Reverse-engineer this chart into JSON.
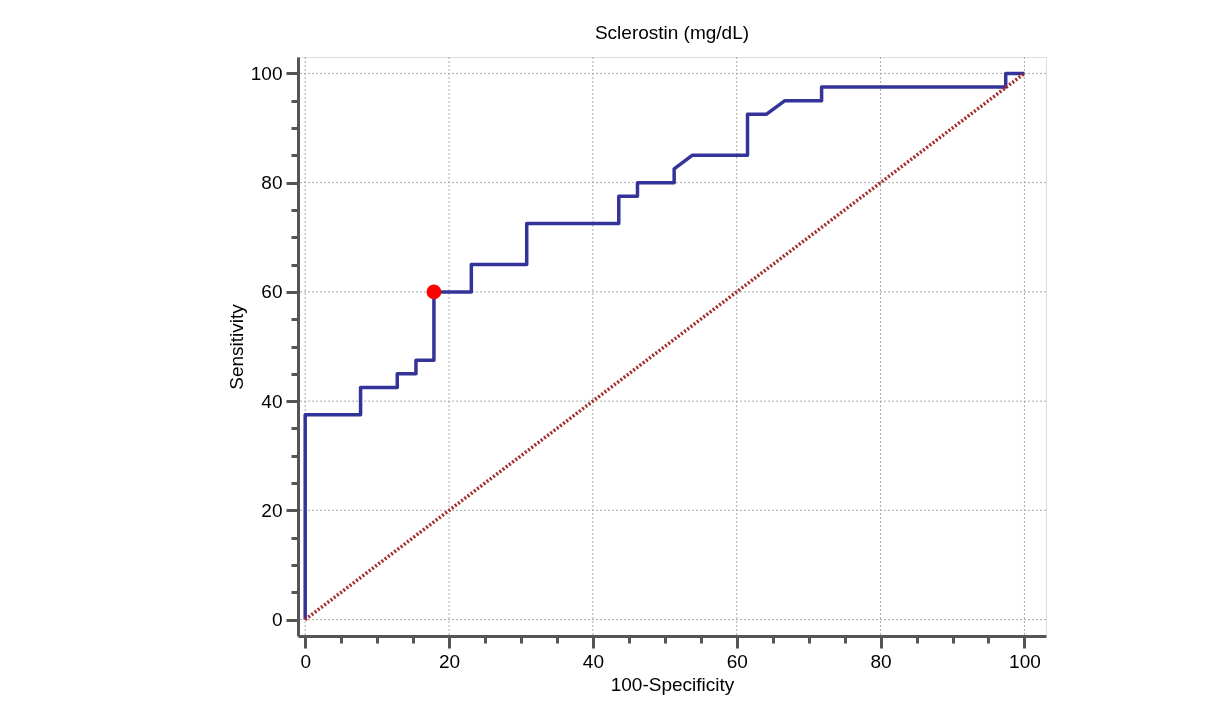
{
  "chart_data": {
    "type": "line",
    "title": "Sclerostin (mg/dL)",
    "xlabel": "100-Specificity",
    "ylabel": "Sensitivity",
    "series": [
      {
        "color": "#333399",
        "line_style": "solid",
        "x": [
          0,
          0,
          7.7,
          7.7,
          12.8,
          12.8,
          15.4,
          15.4,
          17.9,
          17.9,
          23.1,
          23.1,
          30.8,
          30.8,
          43.6,
          43.6,
          46.2,
          46.2,
          51.3,
          51.3,
          53.8,
          61.5,
          61.5,
          64.1,
          66.7,
          71.8,
          71.8,
          97.4,
          97.4,
          100
        ],
        "values": [
          0,
          37.5,
          37.5,
          42.5,
          42.5,
          45,
          45,
          47.5,
          47.5,
          60,
          60,
          65,
          65,
          72.5,
          72.5,
          77.5,
          77.5,
          80,
          80,
          82.5,
          85,
          85,
          92.5,
          92.5,
          95,
          95,
          97.5,
          97.5,
          100,
          100
        ]
      },
      {
        "color": "#a52a2a",
        "line_style": "dotted",
        "x": [
          0,
          100
        ],
        "values": [
          0,
          100
        ]
      },
      {
        "type": "scatter",
        "color": "#ff0000",
        "marker": "circle",
        "x": [
          17.9
        ],
        "values": [
          60
        ]
      }
    ],
    "xlim": [
      -1,
      103
    ],
    "ylim": [
      -3,
      103
    ],
    "xticks": [
      0,
      {
        "value": 5,
        "label": null
      },
      {
        "value": 10,
        "label": null
      },
      {
        "value": 15,
        "label": null
      },
      20,
      {
        "value": 25,
        "label": null
      },
      {
        "value": 30,
        "label": null
      },
      {
        "value": 35,
        "label": null
      },
      40,
      {
        "value": 45,
        "label": null
      },
      {
        "value": 50,
        "label": null
      },
      {
        "value": 55,
        "label": null
      },
      60,
      {
        "value": 65,
        "label": null
      },
      {
        "value": 70,
        "label": null
      },
      {
        "value": 75,
        "label": null
      },
      80,
      {
        "value": 85,
        "label": null
      },
      {
        "value": 90,
        "label": null
      },
      {
        "value": 95,
        "label": null
      },
      100
    ],
    "yticks": [
      0,
      {
        "value": 5,
        "label": null
      },
      {
        "value": 10,
        "label": null
      },
      {
        "value": 15,
        "label": null
      },
      20,
      {
        "value": 25,
        "label": null
      },
      {
        "value": 30,
        "label": null
      },
      {
        "value": 35,
        "label": null
      },
      40,
      {
        "value": 45,
        "label": null
      },
      {
        "value": 50,
        "label": null
      },
      {
        "value": 55,
        "label": null
      },
      60,
      {
        "value": 65,
        "label": null
      },
      {
        "value": 70,
        "label": null
      },
      {
        "value": 75,
        "label": null
      },
      80,
      {
        "value": 85,
        "label": null
      },
      {
        "value": 90,
        "label": null
      },
      {
        "value": 95,
        "label": null
      },
      100
    ],
    "grid": true
  }
}
